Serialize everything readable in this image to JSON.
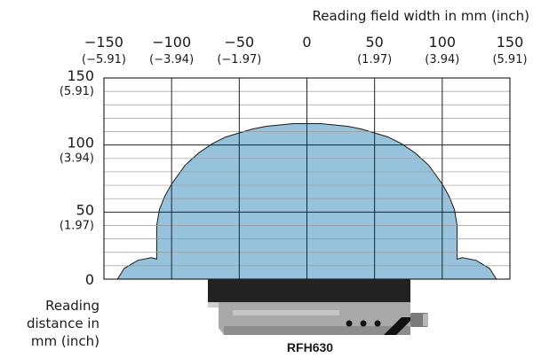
{
  "chart_data": {
    "type": "area",
    "title": "",
    "xlabel": "Reading field width in mm (inch)",
    "ylabel": "Reading distance in mm (inch)",
    "ylabel_lines": [
      "Reading",
      "distance in",
      "mm (inch)"
    ],
    "xlim": [
      -150,
      150
    ],
    "ylim": [
      0,
      150
    ],
    "x_ticks": [
      {
        "value": -150,
        "label": "−150",
        "sub": "(−5.91)"
      },
      {
        "value": -100,
        "label": "−100",
        "sub": "(−3.94)"
      },
      {
        "value": -50,
        "label": "−50",
        "sub": "(−1.97)"
      },
      {
        "value": 0,
        "label": "0",
        "sub": ""
      },
      {
        "value": 50,
        "label": "50",
        "sub": "(1.97)"
      },
      {
        "value": 100,
        "label": "100",
        "sub": "(3.94)"
      },
      {
        "value": 150,
        "label": "150",
        "sub": "(5.91)"
      }
    ],
    "y_ticks": [
      {
        "value": 0,
        "label": "0",
        "sub": ""
      },
      {
        "value": 50,
        "label": "50",
        "sub": "(1.97)"
      },
      {
        "value": 100,
        "label": "100",
        "sub": "(3.94)"
      },
      {
        "value": 150,
        "label": "150",
        "sub": "(5.91)"
      }
    ],
    "grid": true,
    "x_minor_step": 50,
    "y_minor_step": 10,
    "fill_color": "#96c3db",
    "series": [
      {
        "name": "",
        "x": [
          -140,
          -135,
          -125,
          -115,
          -111,
          -111,
          -109,
          -105,
          -100,
          -95,
          -90,
          -80,
          -70,
          -60,
          -50,
          -40,
          -30,
          -20,
          -10,
          0,
          10,
          20,
          30,
          40,
          50,
          60,
          70,
          80,
          90,
          95,
          100,
          105,
          109,
          111,
          111,
          115,
          125,
          135,
          140
        ],
        "y": [
          0,
          8,
          14,
          16,
          15,
          40,
          52,
          62,
          71,
          78,
          85,
          94,
          101,
          106,
          109,
          112,
          114,
          115,
          116,
          116,
          116,
          115,
          114,
          112,
          109,
          106,
          101,
          94,
          85,
          78,
          71,
          62,
          52,
          40,
          15,
          16,
          14,
          8,
          0
        ]
      }
    ]
  },
  "device": {
    "name": "RFH630"
  }
}
